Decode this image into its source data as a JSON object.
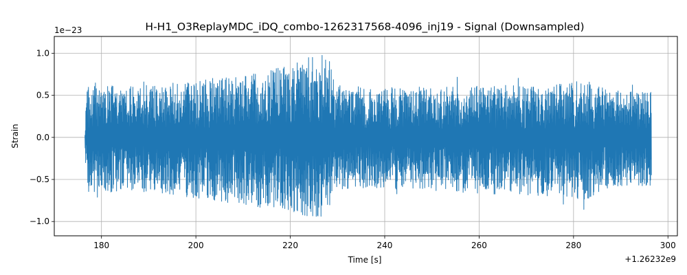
{
  "chart_data": {
    "type": "line",
    "title": "H-H1_O3ReplayMDC_iDQ_combo-1262317568-4096_inj19 - Signal (Downsampled)",
    "xlabel": "Time [s]",
    "ylabel": "Strain",
    "x_offset_label": "+1.26232e9",
    "y_scale_label": "1e−23",
    "xlim": [
      170,
      302
    ],
    "ylim": [
      -1.17,
      1.2
    ],
    "x_ticks": [
      180,
      200,
      220,
      240,
      260,
      280,
      300
    ],
    "x_tick_labels": [
      "180",
      "200",
      "220",
      "240",
      "260",
      "280",
      "300"
    ],
    "y_ticks": [
      -1.0,
      -0.5,
      0.0,
      0.5,
      1.0
    ],
    "y_tick_labels": [
      "−1.0",
      "−0.5",
      "0.0",
      "0.5",
      "1.0"
    ],
    "grid": true,
    "series": [
      {
        "color": "#1f77b4",
        "x_range": [
          176.5,
          296.5
        ],
        "envelope": {
          "x": [
            176.5,
            177,
            180,
            190,
            200,
            210,
            215,
            220,
            224,
            227,
            228.5,
            229.5,
            235,
            245,
            255,
            265,
            275,
            283,
            285,
            290,
            296.5
          ],
          "upper": [
            0.18,
            0.6,
            0.62,
            0.62,
            0.68,
            0.75,
            0.8,
            0.85,
            0.95,
            1.0,
            0.9,
            0.62,
            0.6,
            0.6,
            0.6,
            0.62,
            0.62,
            0.7,
            0.62,
            0.55,
            0.55
          ],
          "lower": [
            -0.2,
            -0.65,
            -0.65,
            -0.65,
            -0.72,
            -0.8,
            -0.85,
            -0.88,
            -0.95,
            -0.95,
            -0.85,
            -0.62,
            -0.6,
            -0.62,
            -0.65,
            -0.68,
            -0.7,
            -0.75,
            -0.65,
            -0.58,
            -0.58
          ]
        }
      }
    ]
  }
}
